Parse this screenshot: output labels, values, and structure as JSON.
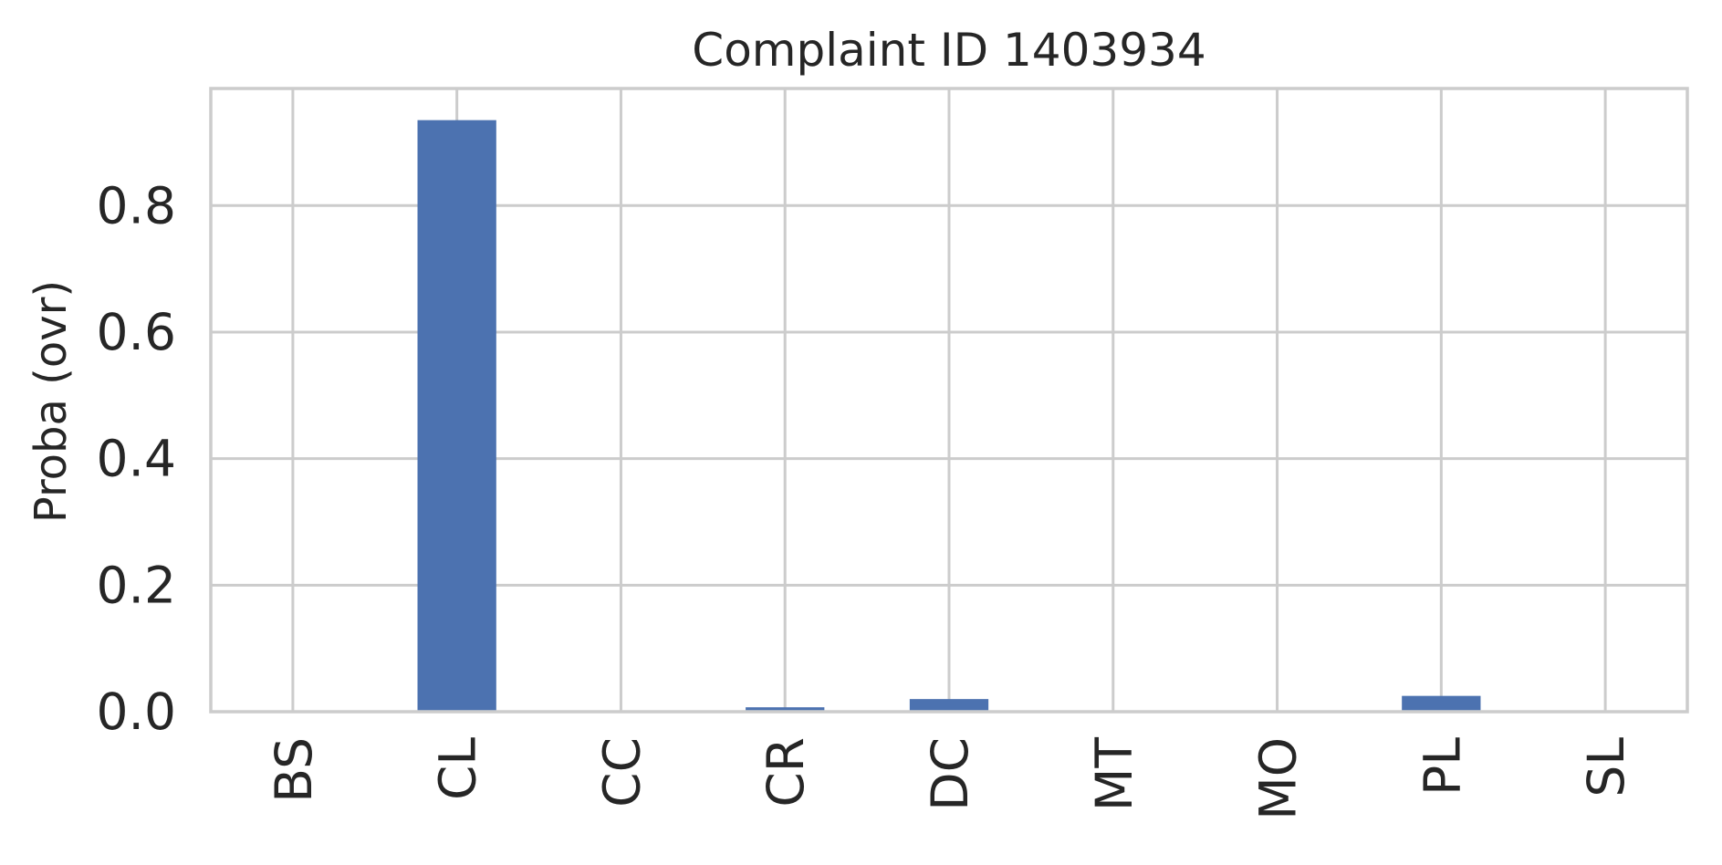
{
  "chart_data": {
    "type": "bar",
    "title": "Complaint ID 1403934",
    "xlabel": "",
    "ylabel": "Proba (ovr)",
    "categories": [
      "BS",
      "CL",
      "CC",
      "CR",
      "DC",
      "MT",
      "MO",
      "PL",
      "SL"
    ],
    "values": [
      0.0,
      0.935,
      0.0,
      0.007,
      0.02,
      0.0,
      0.0,
      0.025,
      0.0
    ],
    "yticks": [
      "0.0",
      "0.2",
      "0.4",
      "0.6",
      "0.8"
    ],
    "ylim": [
      0,
      0.985
    ],
    "grid": true,
    "bar_color": "#4c72b0",
    "grid_color": "#cccccc"
  }
}
